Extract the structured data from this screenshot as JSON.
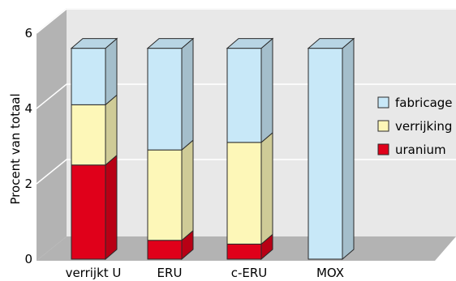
{
  "chart_data": {
    "type": "bar",
    "stacked": true,
    "style": "3d",
    "ylabel": "Procent van totaal",
    "xlabel": "",
    "ylim": [
      0,
      6
    ],
    "yticks": [
      0,
      2,
      4,
      6
    ],
    "grid": true,
    "legend_position": "right",
    "categories": [
      "verrijkt U",
      "ERU",
      "c-ERU",
      "MOX"
    ],
    "series": [
      {
        "name": "uranium",
        "color": "#e0001a",
        "values": [
          2.5,
          0.5,
          0.4,
          0
        ]
      },
      {
        "name": "verrijking",
        "color": "#fdf7b8",
        "values": [
          1.6,
          2.4,
          2.7,
          0
        ]
      },
      {
        "name": "fabricage",
        "color": "#c8e8f8",
        "values": [
          1.5,
          2.7,
          2.5,
          5.6
        ]
      }
    ],
    "legend_order": [
      "fabricage",
      "verrijking",
      "uranium"
    ]
  }
}
